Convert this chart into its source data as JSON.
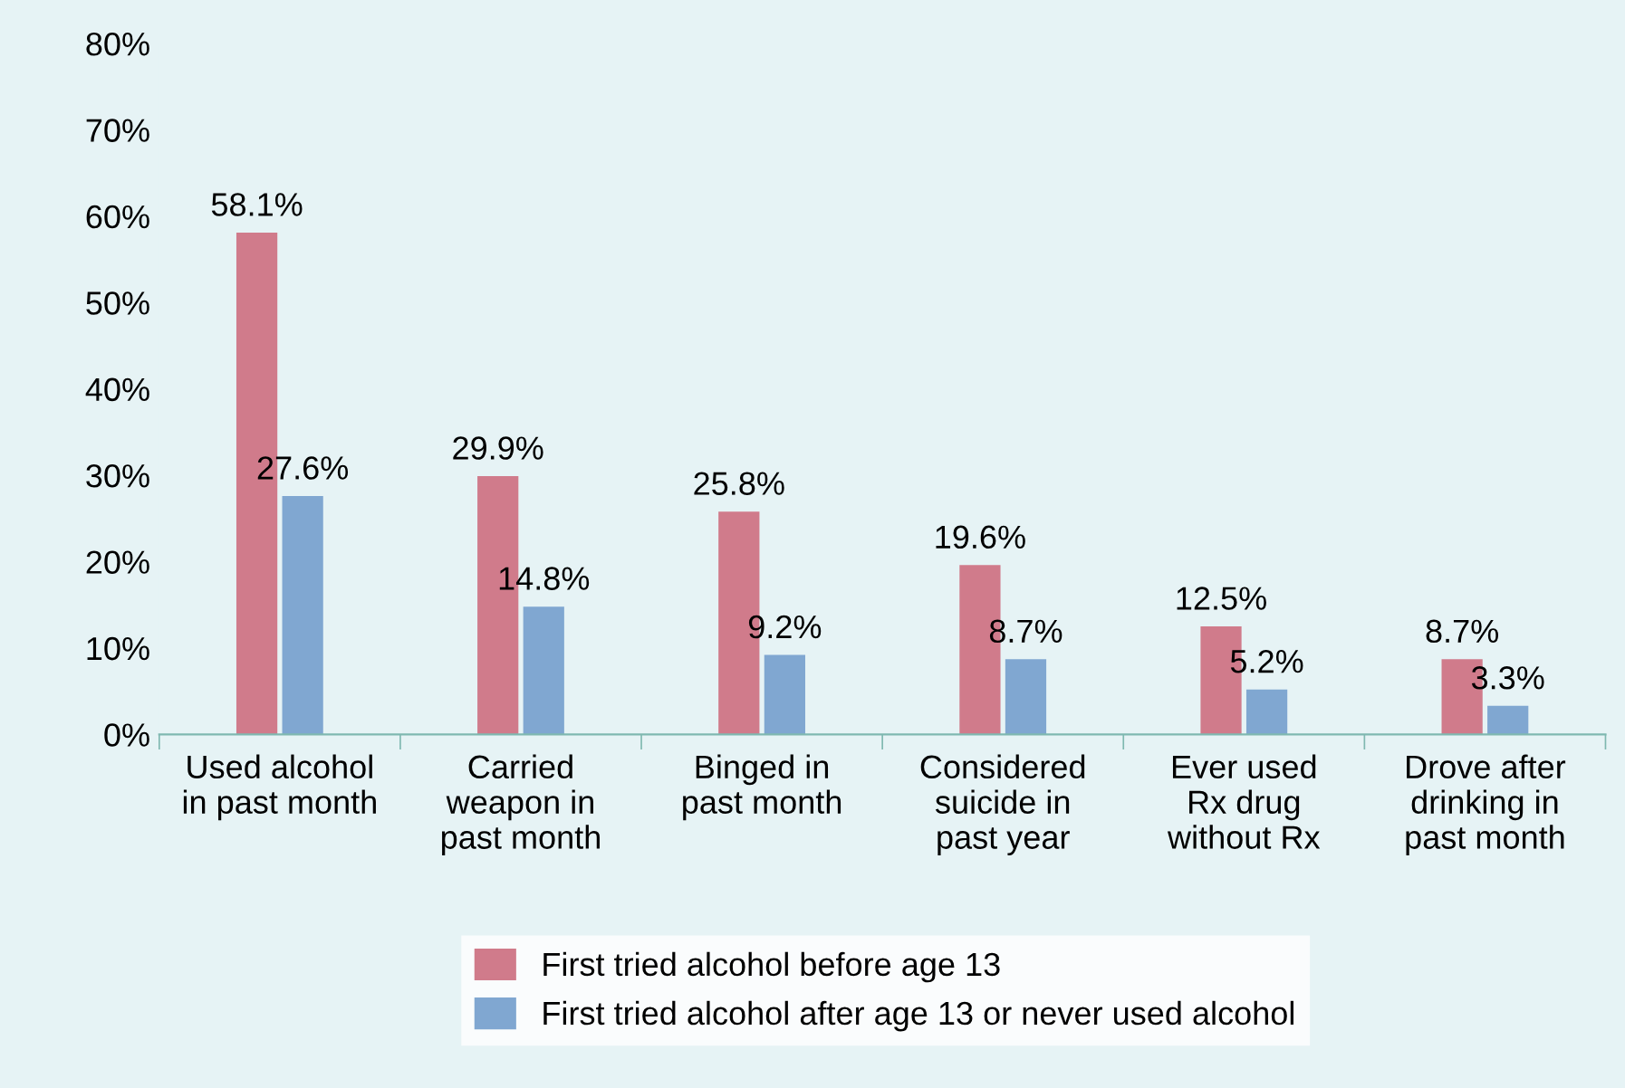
{
  "chart_data": {
    "type": "bar",
    "categories": [
      "Used alcohol\nin past month",
      "Carried\nweapon in\npast month",
      "Binged in\npast month",
      "Considered\nsuicide in\npast year",
      "Ever used\nRx drug\nwithout Rx",
      "Drove after\ndrinking in\npast month"
    ],
    "series": [
      {
        "name": "First tried alcohol before age 13",
        "color": "#d07b8b",
        "values": [
          58.1,
          29.9,
          25.8,
          19.6,
          12.5,
          8.7
        ],
        "value_labels": [
          "58.1%",
          "29.9%",
          "25.8%",
          "19.6%",
          "12.5%",
          "8.7%"
        ]
      },
      {
        "name": "First tried alcohol after age 13 or never used alcohol",
        "color": "#80a7d1",
        "values": [
          27.6,
          14.8,
          9.2,
          8.7,
          5.2,
          3.3
        ],
        "value_labels": [
          "27.6%",
          "14.8%",
          "9.2%",
          "8.7%",
          "5.2%",
          "3.3%"
        ]
      }
    ],
    "ylim": [
      0,
      80
    ],
    "yticks": [
      {
        "value": 0,
        "label": "0%"
      },
      {
        "value": 10,
        "label": "10%"
      },
      {
        "value": 20,
        "label": "20%"
      },
      {
        "value": 30,
        "label": "30%"
      },
      {
        "value": 40,
        "label": "40%"
      },
      {
        "value": 50,
        "label": "50%"
      },
      {
        "value": 60,
        "label": "60%"
      },
      {
        "value": 70,
        "label": "70%"
      },
      {
        "value": 80,
        "label": "80%"
      }
    ],
    "grid": false,
    "legend": "bottom"
  }
}
